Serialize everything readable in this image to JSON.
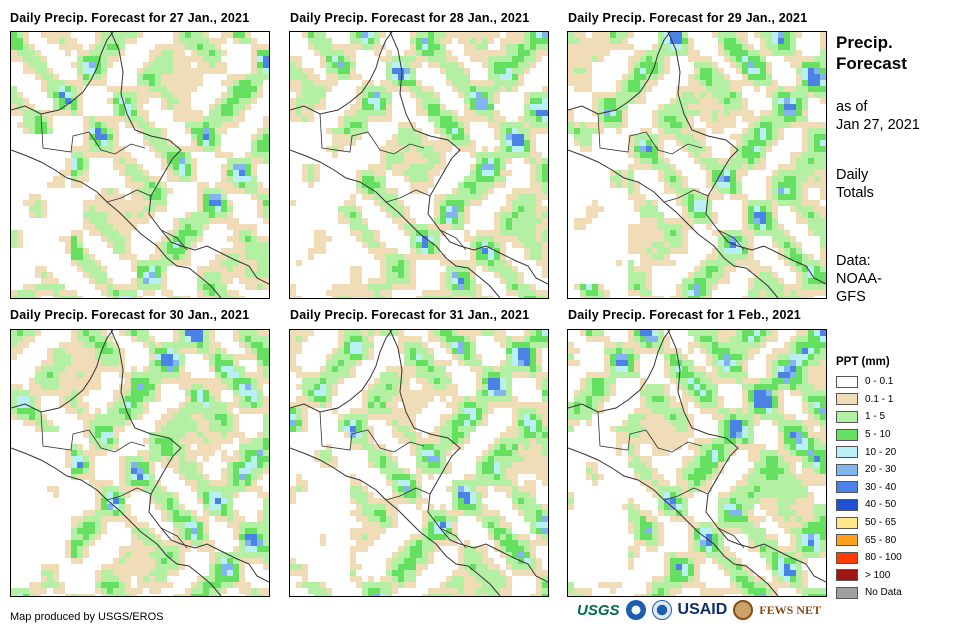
{
  "panels": [
    {
      "title": "Daily Precip. Forecast for 27 Jan., 2021"
    },
    {
      "title": "Daily Precip. Forecast for 28 Jan., 2021"
    },
    {
      "title": "Daily Precip. Forecast for 29 Jan., 2021"
    },
    {
      "title": "Daily Precip. Forecast for 30 Jan., 2021"
    },
    {
      "title": "Daily Precip. Forecast for 31 Jan., 2021"
    },
    {
      "title": "Daily Precip. Forecast for 1 Feb., 2021"
    }
  ],
  "side": {
    "title_line1": "Precip.",
    "title_line2": "Forecast",
    "asof_line1": "as of",
    "asof_line2": "Jan 27, 2021",
    "totals_line1": "Daily",
    "totals_line2": "Totals",
    "data_line1": "Data:",
    "data_line2": "NOAA-",
    "data_line3": "GFS"
  },
  "legend": {
    "title": "PPT (mm)",
    "items": [
      {
        "label": "0 - 0.1",
        "color": "#ffffff"
      },
      {
        "label": "0.1 - 1",
        "color": "#f1dcb8"
      },
      {
        "label": "1 - 5",
        "color": "#b4f0a4"
      },
      {
        "label": "5 - 10",
        "color": "#66e060"
      },
      {
        "label": "10 - 20",
        "color": "#b8f0f5"
      },
      {
        "label": "20 - 30",
        "color": "#82b4f0"
      },
      {
        "label": "30 - 40",
        "color": "#4a82e6"
      },
      {
        "label": "40 - 50",
        "color": "#1e50d2"
      },
      {
        "label": "50 - 65",
        "color": "#ffe68c"
      },
      {
        "label": "65 - 80",
        "color": "#ffa01e"
      },
      {
        "label": "80 - 100",
        "color": "#ff3c00"
      },
      {
        "label": "> 100",
        "color": "#a01414"
      },
      {
        "label": "No Data",
        "color": "#a0a0a0"
      }
    ]
  },
  "footer": {
    "credit": "Map produced by USGS/EROS"
  },
  "logos": {
    "usgs": "USGS",
    "usaid": "USAID",
    "fews": "FEWS NET"
  }
}
